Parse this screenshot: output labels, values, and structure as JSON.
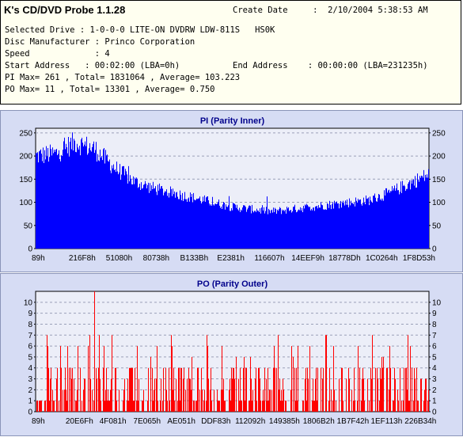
{
  "header": {
    "app_title": "K's CD/DVD Probe 1.1.28",
    "create_date_label": "Create Date",
    "create_date_value": "2/10/2004 5:38:53 AM",
    "selected_drive": "Selected Drive : 1-0-0-0 LITE-ON DVDRW LDW-811S   HS0K",
    "disc_manufacturer": "Disc Manufacturer : Princo Corporation",
    "speed": "Speed             : 4",
    "start_address": "Start Address   : 00:02:00 (LBA=0h)",
    "end_address": "End Address    : 00:00:00 (LBA=231235h)",
    "pi_summary": "PI Max= 261 , Total= 1831064 , Average= 103.223",
    "po_summary": "PO Max= 11 , Total= 13301 , Average= 0.750"
  },
  "chart_data": [
    {
      "type": "area",
      "title": "PI (Parity Inner)",
      "color": "#0000ff",
      "ylim": [
        0,
        260
      ],
      "yticks": [
        0,
        50,
        100,
        150,
        200,
        250
      ],
      "xticks": [
        "89h",
        "216F8h",
        "51080h",
        "80738h",
        "B133Bh",
        "E2381h",
        "116607h",
        "14EEF9h",
        "18778Dh",
        "1C0264h",
        "1F8D53h"
      ],
      "grid": true,
      "x": [
        0,
        0.05,
        0.1,
        0.15,
        0.2,
        0.25,
        0.3,
        0.35,
        0.4,
        0.45,
        0.5,
        0.55,
        0.6,
        0.65,
        0.7,
        0.75,
        0.8,
        0.85,
        0.9,
        0.95,
        1.0
      ],
      "values": [
        200,
        205,
        230,
        215,
        175,
        145,
        130,
        120,
        110,
        100,
        90,
        85,
        80,
        85,
        90,
        95,
        100,
        105,
        120,
        140,
        160
      ]
    },
    {
      "type": "bar",
      "title": "PO (Parity Outer)",
      "color": "#ff0000",
      "ylim": [
        0,
        11
      ],
      "yticks": [
        0,
        1,
        2,
        3,
        4,
        5,
        6,
        7,
        8,
        9,
        10
      ],
      "xticks": [
        "89h",
        "20E6Fh",
        "4F081h",
        "7E065h",
        "AE051h",
        "DDF83h",
        "112092h",
        "149385h",
        "1806B2h",
        "1B7F42h",
        "1EF113h",
        "226B34h"
      ],
      "grid": true,
      "max": 11,
      "average": 0.75
    }
  ]
}
